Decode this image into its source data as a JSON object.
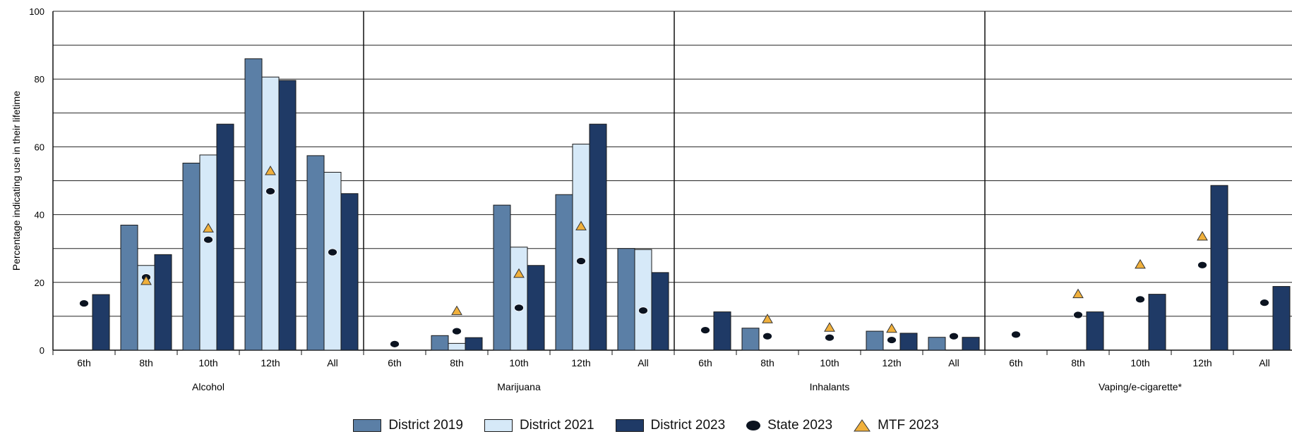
{
  "chart_data": {
    "type": "bar",
    "ylabel": "Percentage indicating use in their lifetime",
    "ylim": [
      0,
      100
    ],
    "yticks": [
      "0",
      "20",
      "40",
      "60",
      "80",
      "100"
    ],
    "gridlines_every": 10,
    "grid": true,
    "legend_position": "bottom",
    "colors": {
      "District 2019": "#5b7fa6",
      "District 2021": "#d6e9f8",
      "District 2023": "#1f3a66",
      "State 2023": "#0b1320",
      "MTF 2023": "#f0b03c"
    },
    "grade_labels": [
      "6th",
      "8th",
      "10th",
      "12th",
      "All"
    ],
    "groups": [
      {
        "name": "Alcohol",
        "series": [
          {
            "name": "District 2019",
            "values": [
              null,
              36.9,
              55.2,
              86.0,
              57.4
            ]
          },
          {
            "name": "District 2021",
            "values": [
              null,
              25.0,
              57.6,
              80.6,
              52.5
            ]
          },
          {
            "name": "District 2023",
            "values": [
              16.4,
              28.2,
              66.7,
              79.6,
              46.2
            ]
          },
          {
            "name": "State 2023",
            "values": [
              13.8,
              21.5,
              32.6,
              46.9,
              28.9
            ]
          },
          {
            "name": "MTF 2023",
            "values": [
              null,
              20.4,
              35.9,
              52.8,
              null
            ]
          }
        ]
      },
      {
        "name": "Marijuana",
        "series": [
          {
            "name": "District 2019",
            "values": [
              null,
              4.3,
              42.8,
              45.9,
              30.0
            ]
          },
          {
            "name": "District 2021",
            "values": [
              null,
              2.0,
              30.4,
              60.8,
              29.7
            ]
          },
          {
            "name": "District 2023",
            "values": [
              null,
              3.7,
              25.0,
              66.7,
              22.9
            ]
          },
          {
            "name": "State 2023",
            "values": [
              1.8,
              5.6,
              12.5,
              26.3,
              11.7
            ]
          },
          {
            "name": "MTF 2023",
            "values": [
              null,
              11.5,
              22.5,
              36.5,
              null
            ]
          }
        ]
      },
      {
        "name": "Inhalants",
        "series": [
          {
            "name": "District 2019",
            "values": [
              null,
              6.5,
              null,
              5.6,
              3.8
            ]
          },
          {
            "name": "District 2021",
            "values": [
              null,
              null,
              null,
              null,
              null
            ]
          },
          {
            "name": "District 2023",
            "values": [
              11.3,
              null,
              null,
              5.0,
              3.8
            ]
          },
          {
            "name": "State 2023",
            "values": [
              5.9,
              4.1,
              3.7,
              3.0,
              4.1
            ]
          },
          {
            "name": "MTF 2023",
            "values": [
              null,
              9.1,
              6.6,
              6.3,
              null
            ]
          }
        ]
      },
      {
        "name": "Vaping/e-cigarette*",
        "series": [
          {
            "name": "District 2019",
            "values": [
              null,
              null,
              null,
              null,
              null
            ]
          },
          {
            "name": "District 2021",
            "values": [
              null,
              null,
              null,
              null,
              null
            ]
          },
          {
            "name": "District 2023",
            "values": [
              null,
              11.3,
              16.5,
              48.6,
              18.8
            ]
          },
          {
            "name": "State 2023",
            "values": [
              4.6,
              10.4,
              15.0,
              25.1,
              14.0
            ]
          },
          {
            "name": "MTF 2023",
            "values": [
              null,
              16.5,
              25.2,
              33.5,
              null
            ]
          }
        ]
      }
    ]
  },
  "legend": [
    {
      "label": "District 2019",
      "kind": "bar",
      "color": "#5b7fa6"
    },
    {
      "label": "District 2021",
      "kind": "bar",
      "color": "#d6e9f8"
    },
    {
      "label": "District 2023",
      "kind": "bar",
      "color": "#1f3a66"
    },
    {
      "label": "State 2023",
      "kind": "dot",
      "color": "#0b1320"
    },
    {
      "label": "MTF 2023",
      "kind": "triangle",
      "color": "#f0b03c"
    }
  ]
}
